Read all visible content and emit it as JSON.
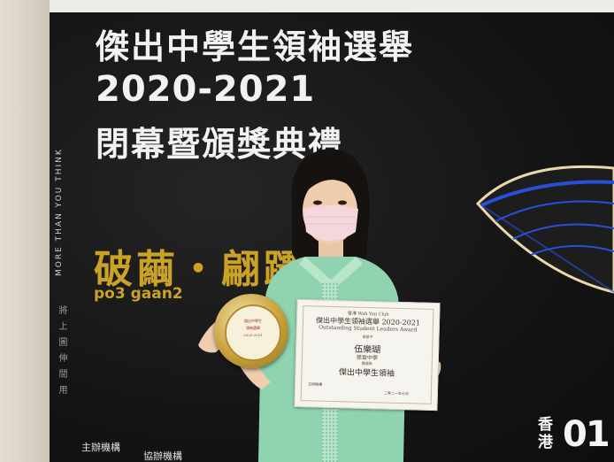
{
  "backdrop": {
    "title_line1": "傑出中學生領袖選舉",
    "title_line2": "2020-2021",
    "title_line3": "閉幕暨頒獎典禮",
    "vertical_slogan": "MORE THAN YOU THINK",
    "vertical_cn": "將上圖伸間用",
    "theme_cn": "破繭・翩躚",
    "theme_jyutping": "po3  gaan2",
    "host_label": "主辦機構",
    "coorganiser_label": "協辦機構",
    "brand_cn_line1": "香",
    "brand_cn_line2": "港",
    "brand_logo": "01"
  },
  "certificate": {
    "org": "香港 Wah Yan Club",
    "title_cn": "傑出中學生領袖選舉 2020-2021",
    "title_en": "Outstanding Student Leaders Award",
    "presented": "頒發予",
    "name": "伍樂瑚",
    "school": "慈雲中學",
    "award_label": "獲選為",
    "award": "傑出中學生領袖",
    "host_small": "主辦機構",
    "date_small": "二零二一年七月"
  },
  "plaque": {
    "line1": "傑出中學生",
    "line2": "領袖選舉",
    "line3": "2020-2021"
  },
  "colors": {
    "gold": "#c9a227",
    "backdrop": "#161616",
    "uniform": "#8fd3b0",
    "wing_blue": "#2a4fd6"
  }
}
